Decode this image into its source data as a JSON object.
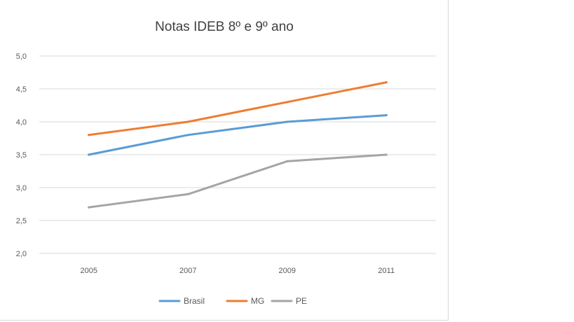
{
  "chart_data": {
    "type": "line",
    "title": "Notas IDEB 8º e 9º ano",
    "categories": [
      "2005",
      "2007",
      "2009",
      "2011"
    ],
    "ylim": [
      2.0,
      5.0
    ],
    "yticks": [
      "2,0",
      "2,5",
      "3,0",
      "3,5",
      "4,0",
      "4,5",
      "5,0"
    ],
    "ytick_values": [
      2.0,
      2.5,
      3.0,
      3.5,
      4.0,
      4.5,
      5.0
    ],
    "grid": true,
    "legend_position": "bottom",
    "series": [
      {
        "name": "Brasil",
        "color": "#5b9bd5",
        "values": [
          3.5,
          3.8,
          4.0,
          4.1
        ]
      },
      {
        "name": "MG",
        "color": "#ed7d31",
        "values": [
          3.8,
          4.0,
          4.3,
          4.6
        ]
      },
      {
        "name": "PE",
        "color": "#a5a5a5",
        "values": [
          2.7,
          2.9,
          3.4,
          3.5
        ]
      }
    ]
  }
}
